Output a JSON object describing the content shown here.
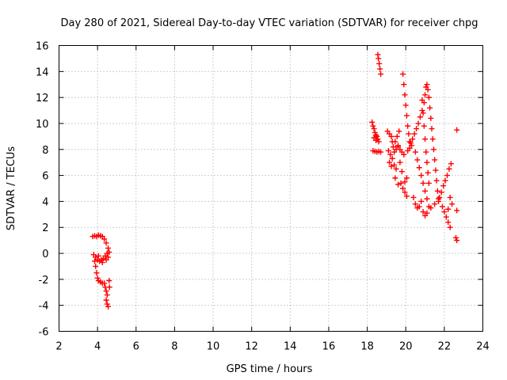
{
  "chart_data": {
    "type": "scatter",
    "title": "Day 280 of 2021, Sidereal Day-to-day VTEC variation (SDTVAR) for receiver chpg",
    "xlabel": "GPS time / hours",
    "ylabel": "SDTVAR / TECUs",
    "xlim": [
      2,
      24
    ],
    "ylim": [
      -6,
      16
    ],
    "xticks": [
      2,
      4,
      6,
      8,
      10,
      12,
      14,
      16,
      18,
      20,
      22,
      24
    ],
    "yticks": [
      -6,
      -4,
      -2,
      0,
      2,
      4,
      6,
      8,
      10,
      12,
      14,
      16
    ],
    "xtick_labels": [
      "2",
      "4",
      "6",
      "8",
      "10",
      "12",
      "14",
      "16",
      "18",
      "20",
      "22",
      "24"
    ],
    "ytick_labels": [
      "-6",
      "-4",
      "-2",
      "0",
      "2",
      "4",
      "6",
      "8",
      "10",
      "12",
      "14",
      "16"
    ],
    "grid": true,
    "marker": "+",
    "series": [
      {
        "name": "sdtvar",
        "color": "#ff0000",
        "points": [
          [
            3.75,
            1.3
          ],
          [
            3.85,
            1.35
          ],
          [
            3.95,
            1.3
          ],
          [
            4.05,
            1.4
          ],
          [
            4.15,
            1.35
          ],
          [
            4.25,
            1.3
          ],
          [
            4.35,
            1.1
          ],
          [
            4.45,
            0.8
          ],
          [
            4.55,
            0.4
          ],
          [
            4.6,
            0.1
          ],
          [
            3.8,
            -0.1
          ],
          [
            3.9,
            -0.3
          ],
          [
            4.0,
            -0.5
          ],
          [
            4.1,
            -0.6
          ],
          [
            4.2,
            -0.5
          ],
          [
            4.3,
            -0.4
          ],
          [
            4.4,
            -0.2
          ],
          [
            4.5,
            0.0
          ],
          [
            3.85,
            -0.6
          ],
          [
            4.05,
            -0.2
          ],
          [
            4.25,
            -0.7
          ],
          [
            4.45,
            -0.5
          ],
          [
            4.55,
            -0.3
          ],
          [
            3.9,
            -1.0
          ],
          [
            3.95,
            -1.5
          ],
          [
            4.0,
            -1.9
          ],
          [
            4.05,
            -2.1
          ],
          [
            4.15,
            -2.2
          ],
          [
            4.25,
            -2.3
          ],
          [
            4.35,
            -2.3
          ],
          [
            4.4,
            -2.6
          ],
          [
            4.45,
            -2.9
          ],
          [
            4.5,
            -3.2
          ],
          [
            4.45,
            -3.6
          ],
          [
            4.5,
            -3.9
          ],
          [
            4.55,
            -4.1
          ],
          [
            4.6,
            -2.1
          ],
          [
            4.62,
            -2.6
          ],
          [
            18.25,
            10.1
          ],
          [
            18.3,
            9.8
          ],
          [
            18.35,
            9.6
          ],
          [
            18.4,
            9.3
          ],
          [
            18.45,
            9.1
          ],
          [
            18.5,
            9.0
          ],
          [
            18.55,
            8.8
          ],
          [
            18.6,
            8.6
          ],
          [
            18.35,
            8.9
          ],
          [
            18.45,
            8.7
          ],
          [
            18.3,
            7.9
          ],
          [
            18.4,
            7.85
          ],
          [
            18.5,
            7.8
          ],
          [
            18.6,
            7.85
          ],
          [
            18.7,
            7.8
          ],
          [
            18.55,
            15.3
          ],
          [
            18.58,
            15.0
          ],
          [
            18.62,
            14.6
          ],
          [
            18.66,
            14.2
          ],
          [
            18.7,
            13.8
          ],
          [
            19.05,
            9.4
          ],
          [
            19.15,
            9.2
          ],
          [
            19.25,
            9.0
          ],
          [
            19.3,
            8.6
          ],
          [
            19.35,
            8.2
          ],
          [
            19.1,
            7.9
          ],
          [
            19.2,
            7.6
          ],
          [
            19.3,
            7.3
          ],
          [
            19.15,
            7.0
          ],
          [
            19.25,
            6.7
          ],
          [
            19.4,
            7.8
          ],
          [
            19.5,
            8.0
          ],
          [
            19.6,
            8.2
          ],
          [
            19.45,
            8.6
          ],
          [
            19.55,
            9.0
          ],
          [
            19.65,
            9.4
          ],
          [
            19.4,
            6.8
          ],
          [
            19.5,
            6.5
          ],
          [
            19.45,
            5.8
          ],
          [
            19.6,
            5.3
          ],
          [
            19.75,
            5.4
          ],
          [
            19.85,
            5.0
          ],
          [
            19.95,
            4.7
          ],
          [
            20.05,
            4.4
          ],
          [
            19.95,
            5.5
          ],
          [
            20.05,
            5.8
          ],
          [
            19.8,
            6.3
          ],
          [
            19.7,
            7.0
          ],
          [
            19.85,
            13.8
          ],
          [
            19.9,
            13.0
          ],
          [
            19.95,
            12.2
          ],
          [
            20.0,
            11.4
          ],
          [
            20.05,
            10.6
          ],
          [
            20.1,
            9.8
          ],
          [
            20.15,
            9.2
          ],
          [
            20.2,
            8.6
          ],
          [
            20.25,
            8.5
          ],
          [
            20.35,
            8.8
          ],
          [
            20.45,
            9.2
          ],
          [
            20.55,
            9.6
          ],
          [
            20.65,
            10.0
          ],
          [
            20.75,
            10.5
          ],
          [
            20.85,
            11.0
          ],
          [
            20.95,
            11.6
          ],
          [
            21.0,
            12.2
          ],
          [
            21.05,
            12.8
          ],
          [
            21.1,
            13.0
          ],
          [
            21.15,
            12.6
          ],
          [
            21.2,
            12.0
          ],
          [
            21.25,
            11.2
          ],
          [
            21.3,
            10.4
          ],
          [
            21.35,
            9.6
          ],
          [
            21.4,
            8.8
          ],
          [
            21.45,
            8.0
          ],
          [
            21.5,
            7.2
          ],
          [
            21.55,
            6.4
          ],
          [
            21.6,
            5.6
          ],
          [
            21.65,
            4.8
          ],
          [
            21.7,
            4.2
          ],
          [
            20.5,
            7.8
          ],
          [
            20.6,
            7.2
          ],
          [
            20.7,
            6.6
          ],
          [
            20.8,
            6.0
          ],
          [
            20.9,
            5.4
          ],
          [
            21.0,
            4.8
          ],
          [
            21.1,
            4.2
          ],
          [
            21.2,
            3.6
          ],
          [
            20.85,
            11.8
          ],
          [
            20.9,
            10.8
          ],
          [
            20.95,
            9.8
          ],
          [
            21.0,
            8.8
          ],
          [
            21.05,
            7.8
          ],
          [
            21.1,
            7.0
          ],
          [
            21.15,
            6.2
          ],
          [
            21.2,
            5.4
          ],
          [
            20.4,
            4.3
          ],
          [
            20.5,
            3.8
          ],
          [
            20.6,
            3.5
          ],
          [
            20.7,
            3.6
          ],
          [
            20.8,
            4.0
          ],
          [
            20.9,
            3.2
          ],
          [
            21.0,
            2.9
          ],
          [
            21.1,
            3.1
          ],
          [
            21.3,
            3.5
          ],
          [
            21.5,
            3.8
          ],
          [
            21.7,
            4.0
          ],
          [
            21.9,
            3.6
          ],
          [
            22.0,
            3.2
          ],
          [
            22.1,
            2.8
          ],
          [
            22.2,
            2.4
          ],
          [
            22.3,
            2.0
          ],
          [
            21.75,
            4.3
          ],
          [
            21.85,
            4.7
          ],
          [
            21.95,
            5.2
          ],
          [
            22.05,
            5.6
          ],
          [
            22.15,
            6.0
          ],
          [
            22.25,
            6.5
          ],
          [
            22.35,
            6.9
          ],
          [
            22.3,
            4.3
          ],
          [
            22.4,
            3.8
          ],
          [
            22.2,
            3.4
          ],
          [
            19.6,
            8.3
          ],
          [
            19.7,
            8.0
          ],
          [
            19.8,
            7.8
          ],
          [
            19.9,
            7.6
          ],
          [
            20.1,
            7.9
          ],
          [
            20.2,
            8.1
          ],
          [
            20.3,
            8.3
          ],
          [
            22.65,
            9.5
          ],
          [
            22.65,
            3.3
          ],
          [
            22.65,
            1.0
          ],
          [
            22.6,
            1.2
          ]
        ]
      }
    ]
  }
}
